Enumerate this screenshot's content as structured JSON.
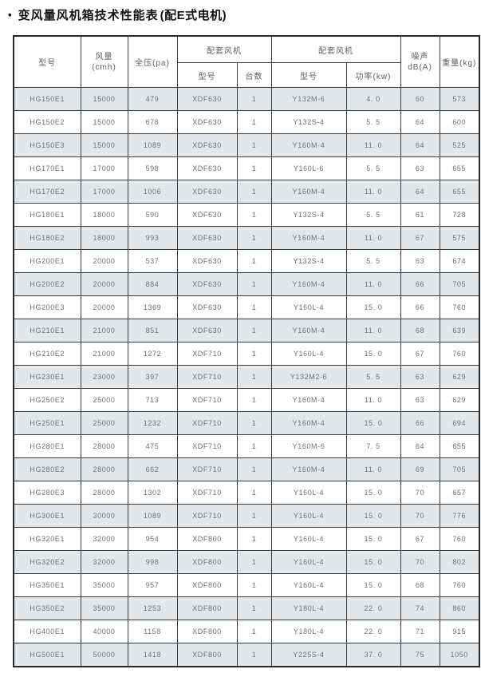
{
  "title": {
    "bullet": "•",
    "main": "变风量风机箱技术性能表",
    "paren": "(配E式电机)"
  },
  "table": {
    "header": {
      "model": "型号",
      "airflow_l1": "风量",
      "airflow_l2": "(cmh)",
      "pressure": "全压(pa)",
      "fan_group": "配套风机",
      "fan_model": "型号",
      "fan_qty": "台数",
      "motor_group": "配套风机",
      "motor_model": "型号",
      "motor_power": "功率(kw)",
      "noise_l1": "噪声",
      "noise_l2": "dB(A)",
      "weight": "重量(kg)"
    },
    "columns": [
      "model",
      "airflow",
      "pressure",
      "fan-model",
      "fan-qty",
      "motor-model",
      "motor-power",
      "noise",
      "weight"
    ],
    "rows": [
      [
        "HG150E1",
        "15000",
        "479",
        "XDF630",
        "1",
        "Y132M-6",
        "4. 0",
        "60",
        "573"
      ],
      [
        "HG150E2",
        "15000",
        "678",
        "XDF630",
        "1",
        "Y132S-4",
        "5. 5",
        "64",
        "600"
      ],
      [
        "HG150E3",
        "15000",
        "1089",
        "XDF630",
        "1",
        "Y160M-4",
        "11. 0",
        "64",
        "525"
      ],
      [
        "HG170E1",
        "17000",
        "598",
        "XDF630",
        "1",
        "Y160L-6",
        "5. 5",
        "63",
        "655"
      ],
      [
        "HG170E2",
        "17000",
        "1006",
        "XDF630",
        "1",
        "Y160M-4",
        "11. 0",
        "64",
        "655"
      ],
      [
        "HG180E1",
        "18000",
        "590",
        "XDF630",
        "1",
        "Y132S-4",
        "5. 5",
        "61",
        "728"
      ],
      [
        "HG180E2",
        "18000",
        "993",
        "XDF630",
        "1",
        "Y160M-4",
        "11. 0",
        "67",
        "575"
      ],
      [
        "HG200E1",
        "20000",
        "537",
        "XDF630",
        "1",
        "Y132S-4",
        "5. 5",
        "63",
        "674"
      ],
      [
        "HG200E2",
        "20000",
        "884",
        "XDF630",
        "1",
        "Y160M-4",
        "11. 0",
        "66",
        "705"
      ],
      [
        "HG200E3",
        "20000",
        "1369",
        "XDF630",
        "1",
        "Y160L-4",
        "15. 0",
        "66",
        "760"
      ],
      [
        "HG210E1",
        "21000",
        "851",
        "XDF630",
        "1",
        "Y160M-4",
        "11. 0",
        "68",
        "639"
      ],
      [
        "HG210E2",
        "21000",
        "1272",
        "XDF710",
        "1",
        "Y160L-4",
        "15. 0",
        "67",
        "760"
      ],
      [
        "HG230E1",
        "23000",
        "397",
        "XDF710",
        "1",
        "Y132M2-6",
        "5. 5",
        "63",
        "629"
      ],
      [
        "HG250E2",
        "25000",
        "713",
        "XDF710",
        "1",
        "Y160M-4",
        "11. 0",
        "63",
        "629"
      ],
      [
        "HG250E1",
        "25000",
        "1232",
        "XDF710",
        "1",
        "Y160M-4",
        "15. 0",
        "66",
        "694"
      ],
      [
        "HG280E1",
        "28000",
        "475",
        "XDF710",
        "1",
        "Y160M-6",
        "7. 5",
        "64",
        "655"
      ],
      [
        "HG280E2",
        "28000",
        "662",
        "XDF710",
        "1",
        "Y160M-4",
        "11. 0",
        "69",
        "705"
      ],
      [
        "HG280E3",
        "28000",
        "1302",
        "XDF710",
        "1",
        "Y160L-4",
        "15. 0",
        "70",
        "657"
      ],
      [
        "HG300E1",
        "30000",
        "1089",
        "XDF710",
        "1",
        "Y160L-4",
        "15. 0",
        "70",
        "776"
      ],
      [
        "HG320E1",
        "32000",
        "954",
        "XDF800",
        "1",
        "Y160L-4",
        "15. 0",
        "67",
        "760"
      ],
      [
        "HG320E2",
        "32000",
        "998",
        "XDF800",
        "1",
        "Y160L-4",
        "15. 0",
        "70",
        "802"
      ],
      [
        "HG350E1",
        "35000",
        "957",
        "XDF800",
        "1",
        "Y160L-4",
        "15. 0",
        "68",
        "760"
      ],
      [
        "HG350E2",
        "35000",
        "1253",
        "XDF800",
        "1",
        "Y180L-4",
        "22. 0",
        "74",
        "860"
      ],
      [
        "HG400E1",
        "40000",
        "1158",
        "XDF800",
        "1",
        "Y180L-4",
        "22. 0",
        "71",
        "915"
      ],
      [
        "HG500E1",
        "50000",
        "1418",
        "XDF800",
        "1",
        "Y225S-4",
        "37. 0",
        "75",
        "1050"
      ]
    ]
  },
  "colors": {
    "row_alt": "#e4e7e9",
    "row_base": "#ffffff",
    "border": "#3c3c3c",
    "outer_border": "#2a2a2a",
    "header_text": "#5f5f5f",
    "cell_text": "#707070",
    "title_text": "#111111"
  }
}
